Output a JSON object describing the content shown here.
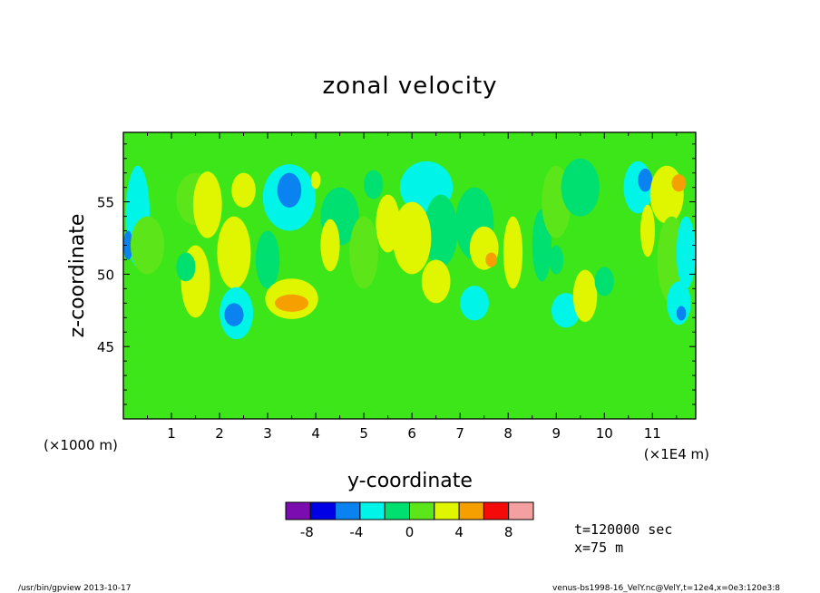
{
  "chart_data": {
    "type": "heatmap",
    "title": "zonal velocity",
    "xlabel": "y-coordinate",
    "ylabel": "z-coordinate",
    "x_scale_note": "(×1E4 m)",
    "y_scale_note": "(×1000 m)",
    "xlim": [
      0,
      11.9
    ],
    "ylim": [
      40,
      59.8
    ],
    "x_ticks": [
      "1",
      "2",
      "3",
      "4",
      "5",
      "6",
      "7",
      "8",
      "9",
      "10",
      "11"
    ],
    "y_ticks": [
      "45",
      "50",
      "55"
    ],
    "colorbar": {
      "levels": [
        -10,
        -8,
        -6,
        -4,
        -2,
        0,
        2,
        4,
        6,
        8,
        10
      ],
      "tick_labels": [
        "-8",
        "-4",
        "0",
        "4",
        "8"
      ],
      "colors": [
        "#7a0cb0",
        "#0000e6",
        "#0a82f0",
        "#00f5e8",
        "#00e070",
        "#5ce619",
        "#e0f500",
        "#f5a000",
        "#f50a0a",
        "#f5a0a0"
      ]
    },
    "background_color": "#3ce619",
    "regions": [
      {
        "x": 0.3,
        "y": 54.0,
        "rx": 0.25,
        "ry": 3.5,
        "value": -3
      },
      {
        "x": 0.1,
        "y": 52.0,
        "rx": 0.1,
        "ry": 1.0,
        "value": -5
      },
      {
        "x": 0.5,
        "y": 52.0,
        "rx": 0.35,
        "ry": 2.0,
        "value": 1
      },
      {
        "x": 1.5,
        "y": 49.5,
        "rx": 0.3,
        "ry": 2.5,
        "value": 3
      },
      {
        "x": 1.5,
        "y": 55.2,
        "rx": 0.4,
        "ry": 1.8,
        "value": 1
      },
      {
        "x": 1.75,
        "y": 54.8,
        "rx": 0.3,
        "ry": 2.3,
        "value": 3
      },
      {
        "x": 2.5,
        "y": 55.8,
        "rx": 0.25,
        "ry": 1.2,
        "value": 3
      },
      {
        "x": 2.3,
        "y": 51.5,
        "rx": 0.35,
        "ry": 2.5,
        "value": 2
      },
      {
        "x": 2.35,
        "y": 47.3,
        "rx": 0.35,
        "ry": 1.8,
        "value": -3
      },
      {
        "x": 2.3,
        "y": 47.2,
        "rx": 0.2,
        "ry": 0.8,
        "value": -5
      },
      {
        "x": 1.3,
        "y": 50.5,
        "rx": 0.2,
        "ry": 1.0,
        "value": -2
      },
      {
        "x": 3.0,
        "y": 51.0,
        "rx": 0.25,
        "ry": 2.0,
        "value": -2
      },
      {
        "x": 3.5,
        "y": 48.3,
        "rx": 0.55,
        "ry": 1.4,
        "value": 3
      },
      {
        "x": 3.5,
        "y": 48.0,
        "rx": 0.35,
        "ry": 0.6,
        "value": 5
      },
      {
        "x": 3.45,
        "y": 55.3,
        "rx": 0.55,
        "ry": 2.3,
        "value": -3
      },
      {
        "x": 3.45,
        "y": 55.8,
        "rx": 0.25,
        "ry": 1.2,
        "value": -5
      },
      {
        "x": 4.5,
        "y": 54.0,
        "rx": 0.4,
        "ry": 2.0,
        "value": -2
      },
      {
        "x": 4.3,
        "y": 52.0,
        "rx": 0.2,
        "ry": 1.8,
        "value": 3
      },
      {
        "x": 4.0,
        "y": 56.5,
        "rx": 0.1,
        "ry": 0.6,
        "value": 3
      },
      {
        "x": 5.5,
        "y": 53.5,
        "rx": 0.25,
        "ry": 2.0,
        "value": 3
      },
      {
        "x": 5.0,
        "y": 51.5,
        "rx": 0.3,
        "ry": 2.5,
        "value": 1
      },
      {
        "x": 5.2,
        "y": 56.2,
        "rx": 0.2,
        "ry": 1.0,
        "value": -2
      },
      {
        "x": 6.3,
        "y": 56.0,
        "rx": 0.55,
        "ry": 1.8,
        "value": -3
      },
      {
        "x": 6.6,
        "y": 53.0,
        "rx": 0.35,
        "ry": 2.5,
        "value": -2
      },
      {
        "x": 6.0,
        "y": 52.5,
        "rx": 0.4,
        "ry": 2.5,
        "value": 3
      },
      {
        "x": 6.5,
        "y": 49.5,
        "rx": 0.3,
        "ry": 1.5,
        "value": 2
      },
      {
        "x": 7.3,
        "y": 53.5,
        "rx": 0.4,
        "ry": 2.5,
        "value": -2
      },
      {
        "x": 7.5,
        "y": 51.8,
        "rx": 0.3,
        "ry": 1.5,
        "value": 3
      },
      {
        "x": 7.65,
        "y": 51.0,
        "rx": 0.12,
        "ry": 0.5,
        "value": 5
      },
      {
        "x": 7.3,
        "y": 48.0,
        "rx": 0.3,
        "ry": 1.2,
        "value": -3
      },
      {
        "x": 8.1,
        "y": 51.5,
        "rx": 0.2,
        "ry": 2.5,
        "value": 3
      },
      {
        "x": 8.7,
        "y": 52.0,
        "rx": 0.2,
        "ry": 2.5,
        "value": -2
      },
      {
        "x": 9.0,
        "y": 55.0,
        "rx": 0.3,
        "ry": 2.5,
        "value": 1
      },
      {
        "x": 9.5,
        "y": 56.0,
        "rx": 0.4,
        "ry": 2.0,
        "value": -2
      },
      {
        "x": 9.2,
        "y": 47.5,
        "rx": 0.3,
        "ry": 1.2,
        "value": -3
      },
      {
        "x": 9.6,
        "y": 48.5,
        "rx": 0.25,
        "ry": 1.8,
        "value": 3
      },
      {
        "x": 10.7,
        "y": 56.0,
        "rx": 0.3,
        "ry": 1.8,
        "value": -3
      },
      {
        "x": 10.85,
        "y": 56.5,
        "rx": 0.15,
        "ry": 0.8,
        "value": -5
      },
      {
        "x": 10.9,
        "y": 53.0,
        "rx": 0.15,
        "ry": 1.8,
        "value": 3
      },
      {
        "x": 11.3,
        "y": 55.5,
        "rx": 0.35,
        "ry": 2.0,
        "value": 3
      },
      {
        "x": 11.55,
        "y": 56.3,
        "rx": 0.15,
        "ry": 0.6,
        "value": 5
      },
      {
        "x": 11.4,
        "y": 51.0,
        "rx": 0.3,
        "ry": 3.0,
        "value": 1
      },
      {
        "x": 11.7,
        "y": 51.5,
        "rx": 0.2,
        "ry": 2.5,
        "value": -3
      },
      {
        "x": 11.55,
        "y": 48.0,
        "rx": 0.25,
        "ry": 1.5,
        "value": -3
      },
      {
        "x": 11.6,
        "y": 47.3,
        "rx": 0.1,
        "ry": 0.5,
        "value": -5
      },
      {
        "x": 9.0,
        "y": 51.0,
        "rx": 0.15,
        "ry": 1.0,
        "value": -2
      },
      {
        "x": 10.0,
        "y": 49.5,
        "rx": 0.2,
        "ry": 1.0,
        "value": -2
      }
    ]
  },
  "info": {
    "time": "t=120000 sec",
    "position": "x=75 m"
  },
  "footer": {
    "left": "/usr/bin/gpview  2013-10-17",
    "right": "venus-bs1998-16_VelY.nc@VelY,t=12e4,x=0e3:120e3:8"
  }
}
